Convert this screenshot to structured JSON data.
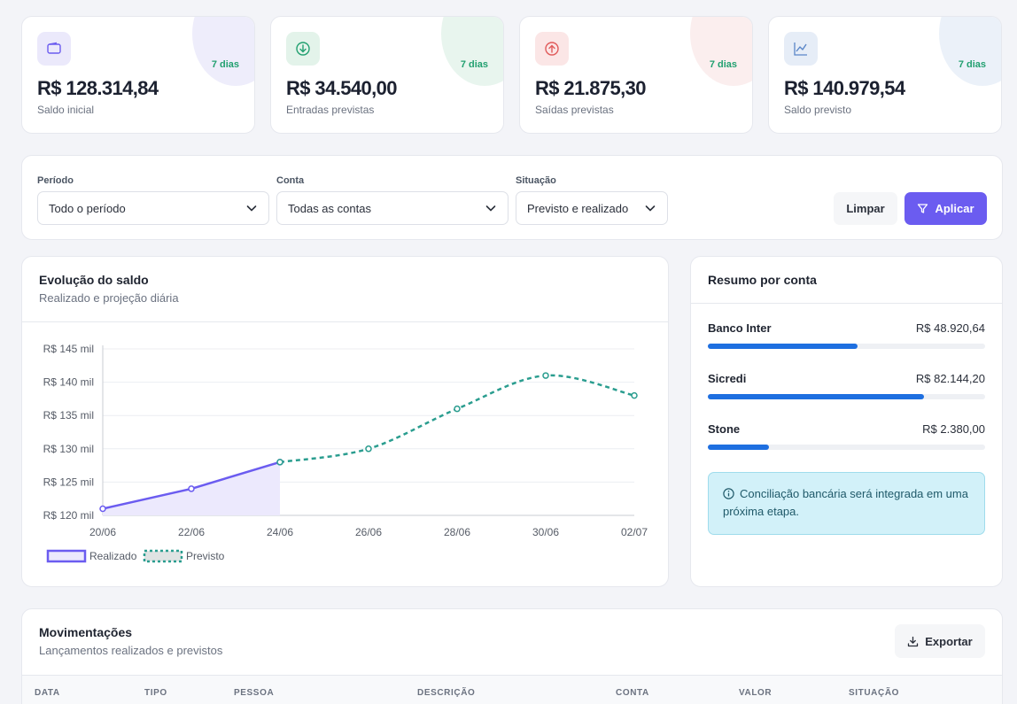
{
  "kpis": [
    {
      "days": "7 dias",
      "value": "R$ 128.314,84",
      "label": "Saldo inicial",
      "icon": "wallet-icon",
      "accent": "#6b5cf0"
    },
    {
      "days": "7 dias",
      "value": "R$ 34.540,00",
      "label": "Entradas previstas",
      "icon": "arrow-down-circle-icon",
      "accent": "#22a070"
    },
    {
      "days": "7 dias",
      "value": "R$ 21.875,30",
      "label": "Saídas previstas",
      "icon": "arrow-up-circle-icon",
      "accent": "#e05a5a"
    },
    {
      "days": "7 dias",
      "value": "R$ 140.979,54",
      "label": "Saldo previsto",
      "icon": "trend-chart-icon",
      "accent": "#5a86c8"
    }
  ],
  "filters": {
    "periodo": {
      "label": "Período",
      "value": "Todo o período"
    },
    "conta": {
      "label": "Conta",
      "value": "Todas as contas"
    },
    "situacao": {
      "label": "Situação",
      "value": "Previsto e realizado"
    },
    "clear_label": "Limpar",
    "apply_label": "Aplicar"
  },
  "evolution": {
    "title": "Evolução do saldo",
    "subtitle": "Realizado e projeção diária"
  },
  "chart_data": {
    "type": "line",
    "x": [
      "20/06",
      "22/06",
      "24/06",
      "26/06",
      "28/06",
      "30/06",
      "02/07"
    ],
    "series": [
      {
        "name": "Realizado",
        "values": [
          121000,
          124000,
          128000,
          null,
          null,
          null,
          null
        ],
        "color": "#6b5cf0",
        "style": "solid",
        "fill": "#ece9fd"
      },
      {
        "name": "Previsto",
        "values": [
          null,
          null,
          128000,
          130000,
          136000,
          141000,
          138000
        ],
        "color": "#2a9d8f",
        "style": "dashed"
      }
    ],
    "y_ticks": [
      "R$ 120 mil",
      "R$ 125 mil",
      "R$ 130 mil",
      "R$ 135 mil",
      "R$ 140 mil",
      "R$ 145 mil"
    ],
    "ylim": [
      120000,
      145000
    ],
    "grid": true,
    "legend": "bottom-left"
  },
  "summary": {
    "title": "Resumo por conta",
    "accounts": [
      {
        "name": "Banco Inter",
        "value": "R$ 48.920,64",
        "share": 0.54
      },
      {
        "name": "Sicredi",
        "value": "R$ 82.144,20",
        "share": 0.78
      },
      {
        "name": "Stone",
        "value": "R$ 2.380,00",
        "share": 0.22
      }
    ],
    "info_text": "Conciliação bancária será integrada em uma próxima etapa."
  },
  "movements": {
    "title": "Movimentações",
    "subtitle": "Lançamentos realizados e previstos",
    "export_label": "Exportar",
    "columns": [
      "DATA",
      "TIPO",
      "PESSOA",
      "DESCRIÇÃO",
      "CONTA",
      "VALOR",
      "SITUAÇÃO"
    ]
  }
}
